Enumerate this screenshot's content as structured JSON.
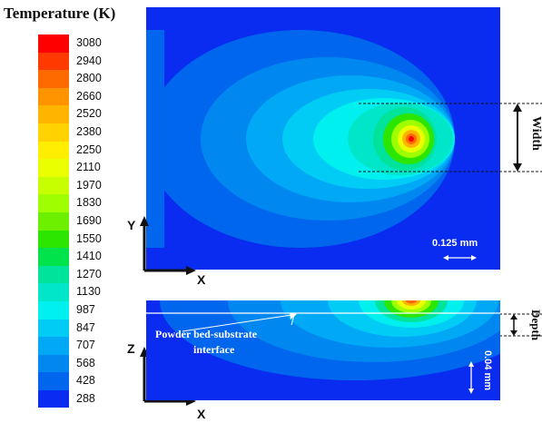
{
  "legend": {
    "title": "Temperature (K)",
    "values": [
      "3080",
      "2940",
      "2800",
      "2660",
      "2520",
      "2380",
      "2250",
      "2110",
      "1970",
      "1830",
      "1690",
      "1550",
      "1410",
      "1270",
      "1130",
      "987",
      "847",
      "707",
      "568",
      "428",
      "288"
    ],
    "colors": [
      "#ff0000",
      "#ff3a00",
      "#ff6a00",
      "#ff9300",
      "#ffb400",
      "#ffd200",
      "#ffee00",
      "#eaff00",
      "#c7ff00",
      "#9fff00",
      "#6cf000",
      "#2ce600",
      "#00e34a",
      "#00e39a",
      "#00e6c8",
      "#00f0f0",
      "#00ccf5",
      "#00a8f5",
      "#0088f0",
      "#0066ed",
      "#0a2bf0"
    ]
  },
  "top_view": {
    "y_axis": "Y",
    "x_axis": "X",
    "dimension_label": "Width",
    "scale_label": "0.125 mm"
  },
  "side_view": {
    "z_axis": "Z",
    "x_axis": "X",
    "dimension_label": "Depth",
    "scale_label": "0.04 mm",
    "annotation_line1": "Powder bed-substrate",
    "annotation_line2": "interface"
  }
}
